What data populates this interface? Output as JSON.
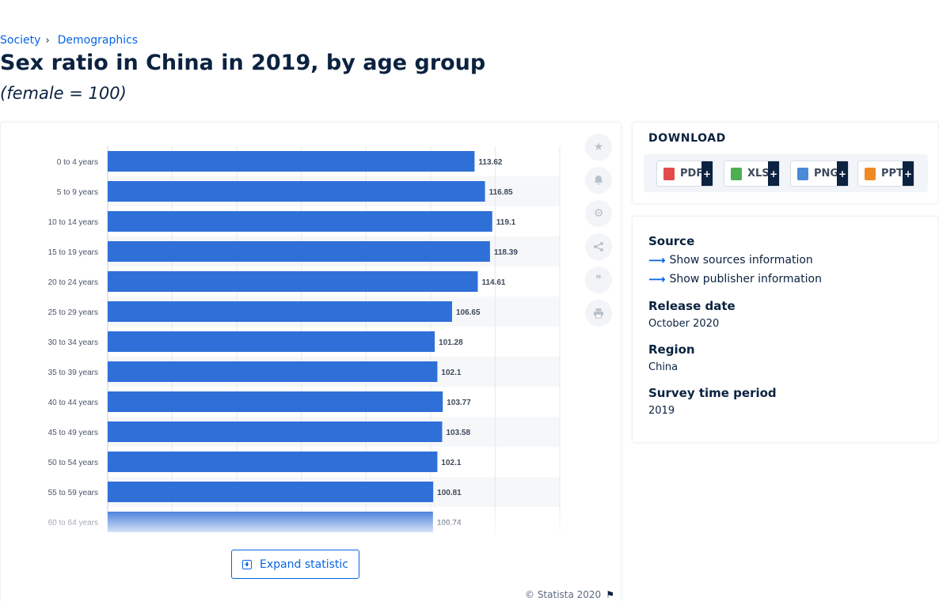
{
  "breadcrumb": {
    "items": [
      "Society",
      "Demographics"
    ],
    "separator": "›"
  },
  "header": {
    "title": "Sex ratio in China in 2019, by age group",
    "subtitle": "(female = 100)"
  },
  "chart_data": {
    "type": "bar",
    "orientation": "horizontal",
    "categories": [
      "0 to 4 years",
      "5 to 9 years",
      "10 to 14 years",
      "15 to 19 years",
      "20 to 24 years",
      "25 to 29 years",
      "30 to 34 years",
      "35 to 39 years",
      "40 to 44 years",
      "45 to 49 years",
      "50 to 54 years",
      "55 to 59 years",
      "60 to 64 years"
    ],
    "values": [
      113.62,
      116.85,
      119.1,
      118.39,
      114.61,
      106.65,
      101.28,
      102.1,
      103.77,
      103.58,
      102.1,
      100.81,
      100.74
    ],
    "labels": [
      "113.62",
      "116.85",
      "119.1",
      "118.39",
      "114.61",
      "106.65",
      "101.28",
      "102.1",
      "103.77",
      "103.58",
      "102.1",
      "100.81",
      "100.74"
    ],
    "xlim": [
      0,
      140
    ],
    "grid": true,
    "color": "#2f6fd8"
  },
  "tools": [
    "star-icon",
    "bell-icon",
    "gear-icon",
    "share-icon",
    "quote-icon",
    "print-icon"
  ],
  "expand_label": "Expand statistic",
  "copyright": "© Statista 2020",
  "download": {
    "title": "DOWNLOAD",
    "buttons": [
      {
        "label": "PDF",
        "plus": "+",
        "icon": "pdf-icon",
        "color": "#e34b4b"
      },
      {
        "label": "XLS",
        "plus": "+",
        "icon": "xls-icon",
        "color": "#4caf50"
      },
      {
        "label": "PNG",
        "plus": "+",
        "icon": "png-icon",
        "color": "#4a8ad8"
      },
      {
        "label": "PPT",
        "plus": "+",
        "icon": "ppt-icon",
        "color": "#f08a24"
      }
    ]
  },
  "meta": {
    "source_heading": "Source",
    "show_sources": "Show sources information",
    "show_publisher": "Show publisher information",
    "release_heading": "Release date",
    "release_value": "October 2020",
    "region_heading": "Region",
    "region_value": "China",
    "survey_heading": "Survey time period",
    "survey_value": "2019"
  }
}
